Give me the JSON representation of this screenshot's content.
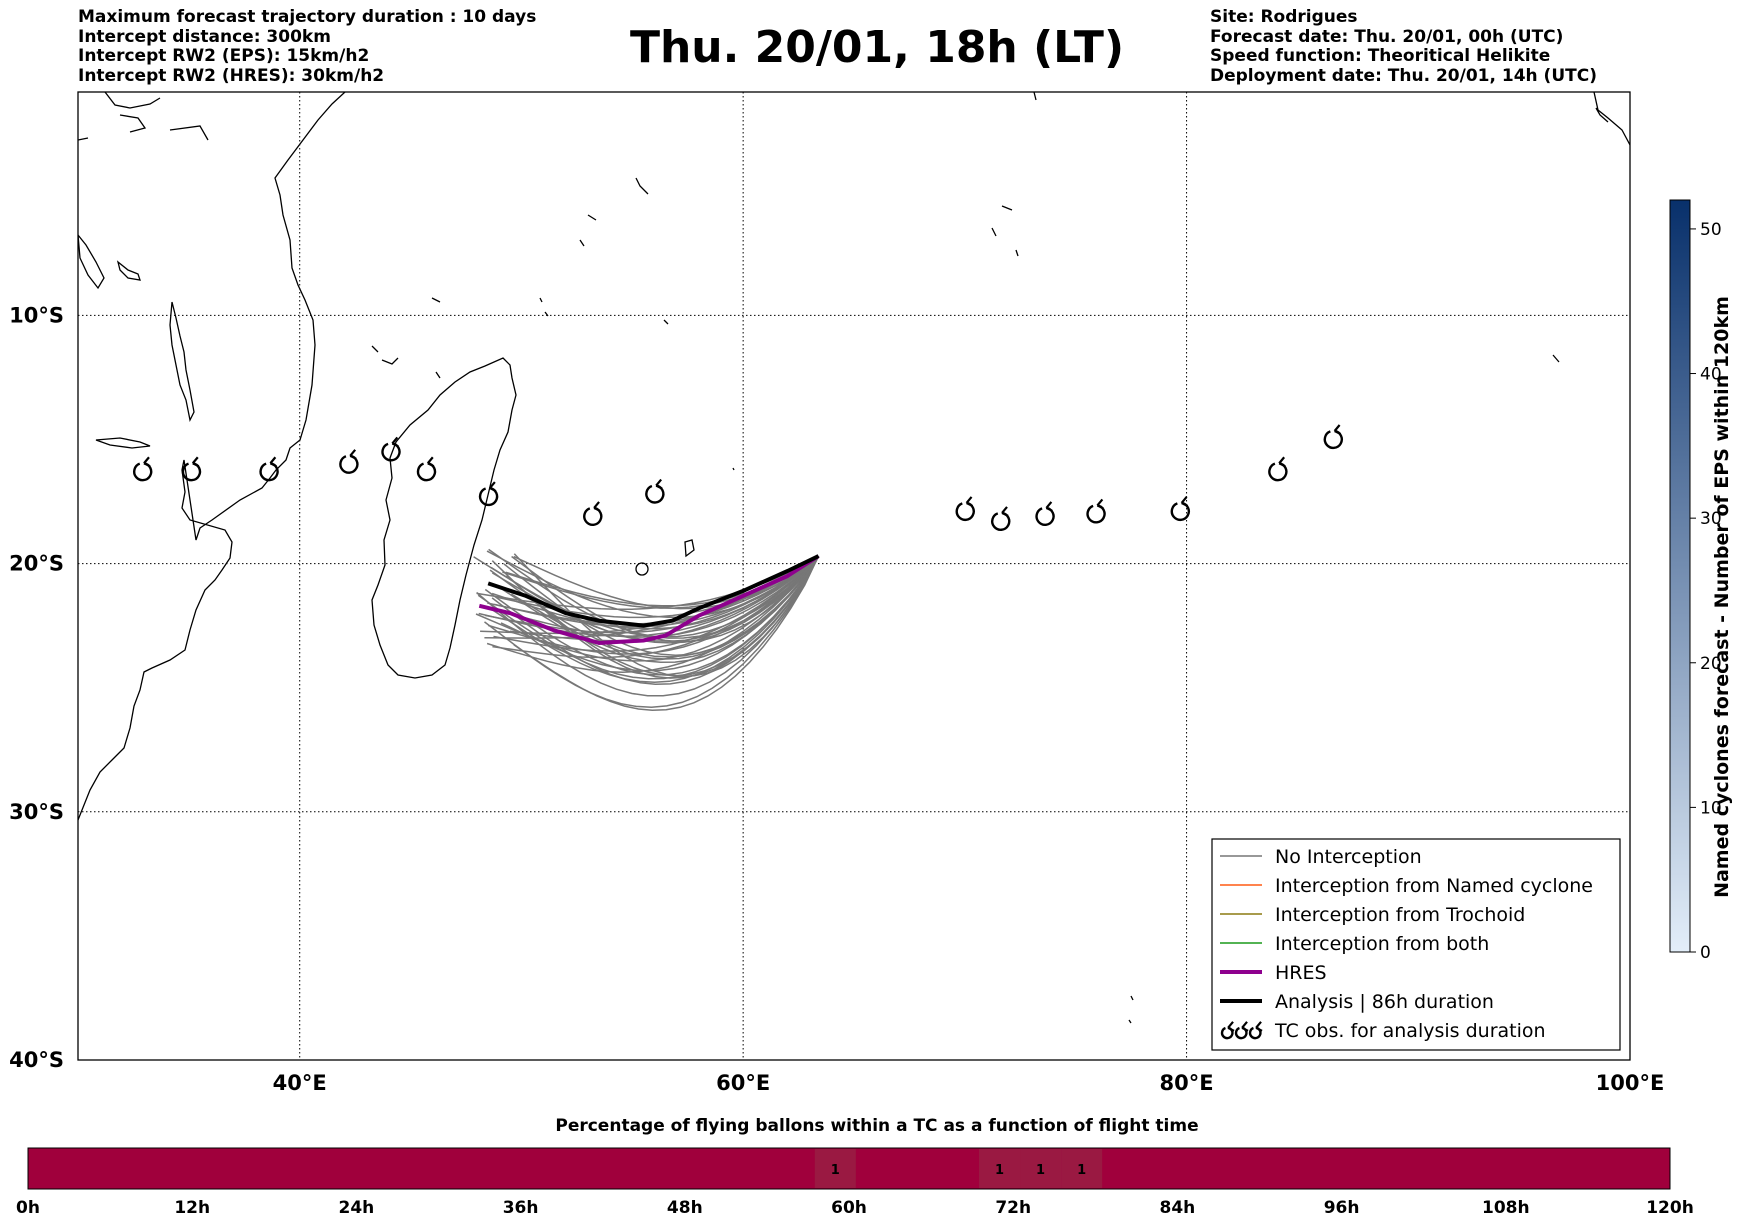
{
  "header": {
    "left_lines": [
      "Maximum forecast trajectory duration : 10 days",
      "Intercept distance: 300km",
      "Intercept RW2 (EPS):  15km/h2",
      "Intercept RW2 (HRES): 30km/h2"
    ],
    "title": "Thu. 20/01, 18h (LT)",
    "right_lines": [
      "Site: Rodrigues",
      "Forecast date: Thu. 20/01, 00h (UTC)",
      "Speed function: Theoritical Helikite",
      "Deployment date: Thu. 20/01, 14h (UTC)"
    ]
  },
  "colors": {
    "no_interception": "#777777",
    "named_cyclone": "#ff5a14",
    "trochoid": "#8c7a10",
    "both": "#1a9a1a",
    "hres": "#8e008e",
    "analysis": "#000000",
    "timeline_fill": "#a0003c",
    "timeline_cell_hl": "#9a1942"
  },
  "colorbar": {
    "label": "Named cyclones forecast - Number of EPS within 120km",
    "ticks": [
      "0",
      "10",
      "20",
      "30",
      "40",
      "50"
    ],
    "max": 52,
    "colors": [
      "#e3eef9",
      "#08306b"
    ]
  },
  "bottom": {
    "title": "Percentage of flying ballons within a TC as a function of flight time",
    "ticks": [
      "0h",
      "12h",
      "24h",
      "36h",
      "48h",
      "60h",
      "72h",
      "84h",
      "96h",
      "108h",
      "120h"
    ],
    "cells": [
      {
        "hour": 59,
        "label": "1"
      },
      {
        "hour": 71,
        "label": "1"
      },
      {
        "hour": 74,
        "label": "1"
      },
      {
        "hour": 77,
        "label": "1"
      }
    ]
  },
  "chart_data": {
    "type": "line",
    "title": "Thu. 20/01, 18h (LT)",
    "x_axis": {
      "ticks": [
        "40°E",
        "60°E",
        "80°E",
        "100°E"
      ],
      "range_lon": [
        30,
        100
      ]
    },
    "y_axis": {
      "ticks": [
        "10°S",
        "20°S",
        "30°S",
        "40°S"
      ],
      "range_lat": [
        -1,
        -40
      ]
    },
    "grid": true,
    "legend_position": "bottom-right",
    "legend": [
      {
        "label": "No Interception",
        "key": "no_interception"
      },
      {
        "label": "Interception from Named cyclone",
        "key": "named_cyclone"
      },
      {
        "label": "Interception from Trochoid",
        "key": "trochoid"
      },
      {
        "label": "Interception from both",
        "key": "both"
      },
      {
        "label": "HRES",
        "key": "hres"
      },
      {
        "label": "Analysis | 86h duration",
        "key": "analysis"
      },
      {
        "label": "TC obs. for analysis duration",
        "key": "tc_obs"
      }
    ],
    "release_point": [
      63.4,
      -19.7
    ],
    "series": [
      {
        "name": "HRES",
        "key": "hres",
        "points": [
          [
            63.4,
            -19.7
          ],
          [
            62,
            -20.5
          ],
          [
            60,
            -21.3
          ],
          [
            58,
            -22.1
          ],
          [
            56.5,
            -22.9
          ],
          [
            55.5,
            -23.1
          ],
          [
            53.5,
            -23.2
          ],
          [
            51.5,
            -22.7
          ],
          [
            49.5,
            -22.0
          ],
          [
            48.1,
            -21.7
          ]
        ]
      },
      {
        "name": "Analysis | 86h duration",
        "key": "analysis",
        "points": [
          [
            63.4,
            -19.7
          ],
          [
            62,
            -20.3
          ],
          [
            60,
            -21.1
          ],
          [
            58,
            -21.8
          ],
          [
            56.8,
            -22.3
          ],
          [
            55.5,
            -22.5
          ],
          [
            53.5,
            -22.3
          ],
          [
            52,
            -22.0
          ],
          [
            50.2,
            -21.3
          ],
          [
            48.5,
            -20.8
          ]
        ]
      }
    ],
    "ensemble_count": 40,
    "tc_obs": [
      [
        32.9,
        -16.3
      ],
      [
        35.1,
        -16.3
      ],
      [
        38.6,
        -16.3
      ],
      [
        42.2,
        -16.0
      ],
      [
        44.1,
        -15.5
      ],
      [
        45.7,
        -16.3
      ],
      [
        48.5,
        -17.3
      ],
      [
        53.2,
        -18.1
      ],
      [
        56,
        -17.2
      ],
      [
        70,
        -17.9
      ],
      [
        71.6,
        -18.3
      ],
      [
        73.6,
        -18.1
      ],
      [
        75.9,
        -18.0
      ],
      [
        79.7,
        -17.9
      ],
      [
        84.1,
        -16.3
      ],
      [
        86.6,
        -15.0
      ]
    ]
  }
}
